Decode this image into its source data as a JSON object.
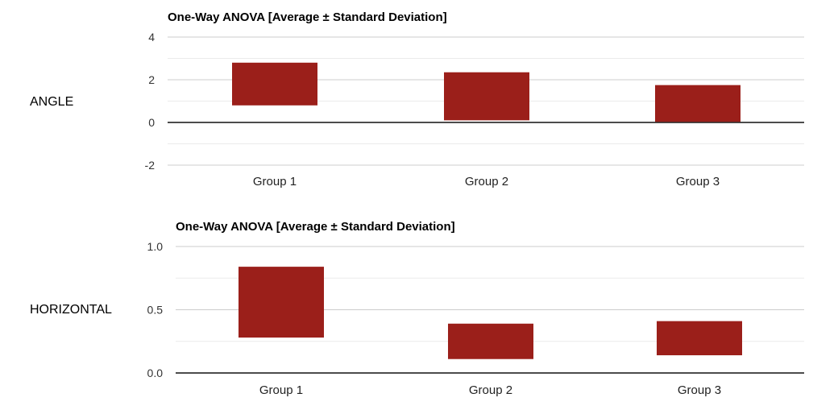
{
  "rows": [
    {
      "label": "ANGLE"
    },
    {
      "label": "HORIZONTAL"
    }
  ],
  "chart_data": [
    {
      "type": "bar",
      "title": "One-Way ANOVA [Average ± Standard Deviation]",
      "categories": [
        "Group 1",
        "Group 2",
        "Group 3"
      ],
      "series": [
        {
          "low": [
            0.8,
            0.1,
            0.0
          ],
          "high": [
            2.8,
            2.35,
            1.75
          ]
        }
      ],
      "ylim": [
        -2,
        4
      ],
      "yticks": [
        -2,
        0,
        2,
        4
      ],
      "ytick_labels": [
        "-2",
        "0",
        "2",
        "4"
      ],
      "minor_gridlines": true,
      "bar_color": "#9b1f1a"
    },
    {
      "type": "bar",
      "title": "One-Way ANOVA [Average ± Standard Deviation]",
      "categories": [
        "Group 1",
        "Group 2",
        "Group 3"
      ],
      "series": [
        {
          "low": [
            0.28,
            0.11,
            0.14
          ],
          "high": [
            0.84,
            0.39,
            0.41
          ]
        }
      ],
      "ylim": [
        0,
        1
      ],
      "yticks": [
        0,
        0.5,
        1
      ],
      "ytick_labels": [
        "0.0",
        "0.5",
        "1.0"
      ],
      "minor_gridlines": true,
      "bar_color": "#9b1f1a"
    }
  ]
}
